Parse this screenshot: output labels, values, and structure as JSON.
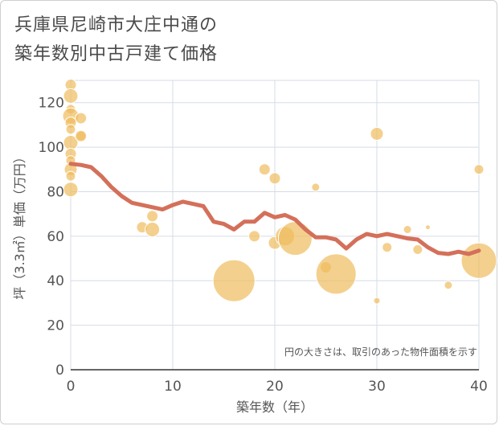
{
  "title_line1": "兵庫県尼崎市大庄中通の",
  "title_line2": "築年数別中古戸建て価格",
  "chart_data": {
    "type": "scatter",
    "xlabel": "築年数（年）",
    "ylabel": "坪（3.3㎡）単価（万円）",
    "xlim": [
      0,
      40
    ],
    "ylim": [
      0,
      130
    ],
    "xticks": [
      0,
      10,
      20,
      30,
      40
    ],
    "yticks": [
      0,
      20,
      40,
      60,
      80,
      100,
      120
    ],
    "note": "円の大きさは、取引のあった物件面積を示す",
    "colors": {
      "bubble": "#f0bc5e",
      "line": "#d4705a",
      "grid": "#d5dce6"
    },
    "bubbles": [
      {
        "x": 0,
        "y": 128,
        "s": 7
      },
      {
        "x": 0,
        "y": 123,
        "s": 9
      },
      {
        "x": 0,
        "y": 117,
        "s": 6
      },
      {
        "x": 0,
        "y": 114,
        "s": 10
      },
      {
        "x": 0,
        "y": 111,
        "s": 7
      },
      {
        "x": 0,
        "y": 108,
        "s": 6
      },
      {
        "x": 0,
        "y": 102,
        "s": 9
      },
      {
        "x": 0,
        "y": 97,
        "s": 7
      },
      {
        "x": 0,
        "y": 94,
        "s": 6
      },
      {
        "x": 0,
        "y": 90,
        "s": 8
      },
      {
        "x": 0,
        "y": 87,
        "s": 6
      },
      {
        "x": 0,
        "y": 81,
        "s": 9
      },
      {
        "x": 1,
        "y": 113,
        "s": 7
      },
      {
        "x": 1,
        "y": 105,
        "s": 6
      },
      {
        "x": 1,
        "y": 105,
        "s": 7
      },
      {
        "x": 7,
        "y": 64,
        "s": 7
      },
      {
        "x": 8,
        "y": 69,
        "s": 7
      },
      {
        "x": 8,
        "y": 63,
        "s": 9
      },
      {
        "x": 16,
        "y": 40,
        "s": 26
      },
      {
        "x": 18,
        "y": 60,
        "s": 7
      },
      {
        "x": 19,
        "y": 90,
        "s": 7
      },
      {
        "x": 20,
        "y": 86,
        "s": 7
      },
      {
        "x": 20,
        "y": 57,
        "s": 8
      },
      {
        "x": 21,
        "y": 60,
        "s": 12
      },
      {
        "x": 22,
        "y": 59,
        "s": 21
      },
      {
        "x": 24,
        "y": 82,
        "s": 5
      },
      {
        "x": 25,
        "y": 46,
        "s": 7
      },
      {
        "x": 26,
        "y": 43,
        "s": 25
      },
      {
        "x": 30,
        "y": 106,
        "s": 8
      },
      {
        "x": 30,
        "y": 31,
        "s": 4
      },
      {
        "x": 31,
        "y": 55,
        "s": 6
      },
      {
        "x": 33,
        "y": 63,
        "s": 5
      },
      {
        "x": 34,
        "y": 54,
        "s": 6
      },
      {
        "x": 35,
        "y": 64,
        "s": 3
      },
      {
        "x": 37,
        "y": 38,
        "s": 5
      },
      {
        "x": 40,
        "y": 90,
        "s": 6
      },
      {
        "x": 40,
        "y": 49,
        "s": 22
      }
    ],
    "line": {
      "x": [
        0,
        1,
        2,
        3,
        4,
        5,
        6,
        7,
        8,
        9,
        10,
        11,
        12,
        13,
        14,
        15,
        16,
        17,
        18,
        19,
        20,
        21,
        22,
        23,
        24,
        25,
        26,
        27,
        28,
        29,
        30,
        31,
        32,
        33,
        34,
        35,
        36,
        37,
        38,
        39,
        40
      ],
      "y": [
        92.5,
        92,
        91,
        87,
        82,
        78,
        75,
        74,
        73,
        72,
        74,
        75.5,
        74.5,
        73.5,
        66.5,
        65.5,
        63,
        66.5,
        66.5,
        70.5,
        68.5,
        69.5,
        67.5,
        63,
        59.5,
        59.5,
        58.5,
        54.5,
        58.5,
        61,
        60,
        61,
        60,
        59,
        58.5,
        55,
        52.5,
        52,
        53,
        52,
        53.5
      ]
    }
  }
}
